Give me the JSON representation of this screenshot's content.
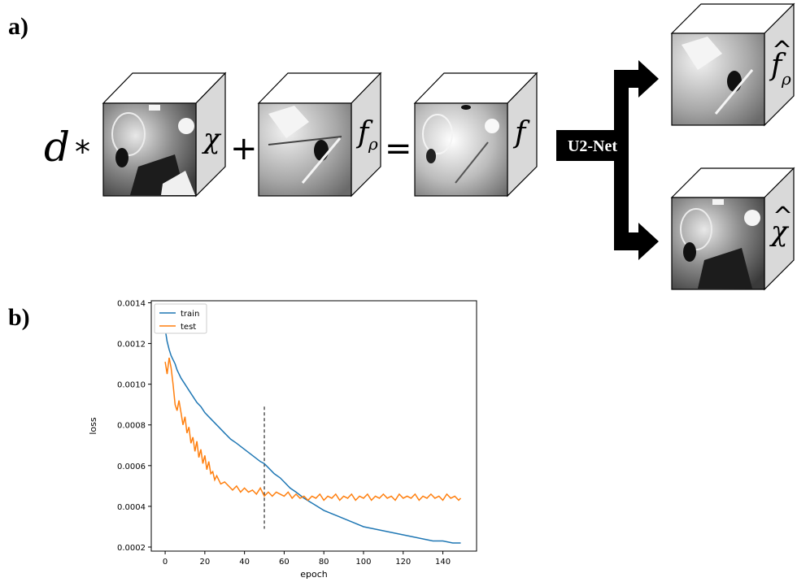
{
  "panel_a": {
    "label": "a)",
    "prefix": "d",
    "star": "*",
    "plus": "+",
    "equals": "=",
    "cube_labels": [
      "χ",
      "f",
      "f"
    ],
    "cube_label_subscript": "ρ",
    "network_label": "U2-Net",
    "output_labels": [
      "f",
      "χ"
    ],
    "output_subscript": "ρ",
    "hat": "^"
  },
  "panel_b": {
    "label": "b)"
  },
  "chart_data": {
    "type": "line",
    "title": "",
    "xlabel": "epoch",
    "ylabel": "loss",
    "xlim": [
      -7,
      157
    ],
    "ylim": [
      0.00018,
      0.00141
    ],
    "x_ticks": [
      0,
      20,
      40,
      60,
      80,
      100,
      120,
      140
    ],
    "y_ticks": [
      0.0002,
      0.0004,
      0.0006,
      0.0008,
      0.001,
      0.0012,
      0.0014
    ],
    "y_tick_labels": [
      "0.0002",
      "0.0004",
      "0.0006",
      "0.0008",
      "0.0010",
      "0.0012",
      "0.0014"
    ],
    "legend_position": "top-left",
    "vline": {
      "x": 50,
      "y_range": [
        0.00029,
        0.00089
      ],
      "style": "dashed",
      "color": "#000000"
    },
    "series": [
      {
        "name": "train",
        "color": "#1f77b4",
        "x": [
          0,
          1,
          2,
          3,
          4,
          5,
          6,
          8,
          10,
          12,
          14,
          16,
          18,
          20,
          22,
          25,
          28,
          30,
          33,
          36,
          40,
          44,
          48,
          50,
          52,
          55,
          58,
          60,
          63,
          66,
          70,
          75,
          80,
          85,
          90,
          95,
          100,
          105,
          110,
          115,
          120,
          125,
          130,
          135,
          140,
          145,
          149
        ],
        "values": [
          0.00127,
          0.00121,
          0.00117,
          0.00114,
          0.00112,
          0.0011,
          0.00107,
          0.00103,
          0.001,
          0.00097,
          0.00094,
          0.00091,
          0.00089,
          0.00086,
          0.00084,
          0.00081,
          0.00078,
          0.00076,
          0.00073,
          0.00071,
          0.00068,
          0.00065,
          0.00062,
          0.00061,
          0.00059,
          0.00056,
          0.00054,
          0.00052,
          0.00049,
          0.00047,
          0.00044,
          0.00041,
          0.00038,
          0.00036,
          0.00034,
          0.00032,
          0.0003,
          0.00029,
          0.00028,
          0.00027,
          0.00026,
          0.00025,
          0.00024,
          0.00023,
          0.00023,
          0.00022,
          0.00022
        ]
      },
      {
        "name": "test",
        "color": "#ff7f0e",
        "x": [
          0,
          1,
          2,
          3,
          4,
          5,
          6,
          7,
          8,
          9,
          10,
          11,
          12,
          13,
          14,
          15,
          16,
          17,
          18,
          19,
          20,
          21,
          22,
          23,
          24,
          25,
          26,
          28,
          30,
          32,
          34,
          36,
          38,
          40,
          42,
          44,
          46,
          48,
          50,
          52,
          54,
          56,
          58,
          60,
          62,
          64,
          66,
          68,
          70,
          72,
          74,
          76,
          78,
          80,
          82,
          84,
          86,
          88,
          90,
          92,
          94,
          96,
          98,
          100,
          102,
          104,
          106,
          108,
          110,
          112,
          114,
          116,
          118,
          120,
          122,
          124,
          126,
          128,
          130,
          132,
          134,
          136,
          138,
          140,
          142,
          144,
          146,
          148,
          149
        ],
        "values": [
          0.00111,
          0.00105,
          0.00113,
          0.00108,
          0.001,
          0.0009,
          0.00087,
          0.00092,
          0.00086,
          0.0008,
          0.00084,
          0.00076,
          0.00079,
          0.00071,
          0.00074,
          0.00067,
          0.00072,
          0.00064,
          0.00068,
          0.00061,
          0.00065,
          0.00058,
          0.00062,
          0.00056,
          0.00057,
          0.00053,
          0.00055,
          0.00051,
          0.00052,
          0.0005,
          0.00048,
          0.0005,
          0.00047,
          0.00049,
          0.00047,
          0.00048,
          0.00046,
          0.00049,
          0.00045,
          0.00047,
          0.00045,
          0.00047,
          0.00046,
          0.00045,
          0.00047,
          0.00044,
          0.00046,
          0.00044,
          0.00045,
          0.00043,
          0.00045,
          0.00044,
          0.00046,
          0.00043,
          0.00045,
          0.00044,
          0.00046,
          0.00043,
          0.00045,
          0.00044,
          0.00046,
          0.00043,
          0.00045,
          0.00044,
          0.00046,
          0.00043,
          0.00045,
          0.00044,
          0.00046,
          0.00044,
          0.00045,
          0.00043,
          0.00046,
          0.00044,
          0.00045,
          0.00044,
          0.00046,
          0.00043,
          0.00045,
          0.00044,
          0.00046,
          0.00044,
          0.00045,
          0.00043,
          0.00046,
          0.00044,
          0.00045,
          0.00043,
          0.00044
        ]
      }
    ]
  }
}
